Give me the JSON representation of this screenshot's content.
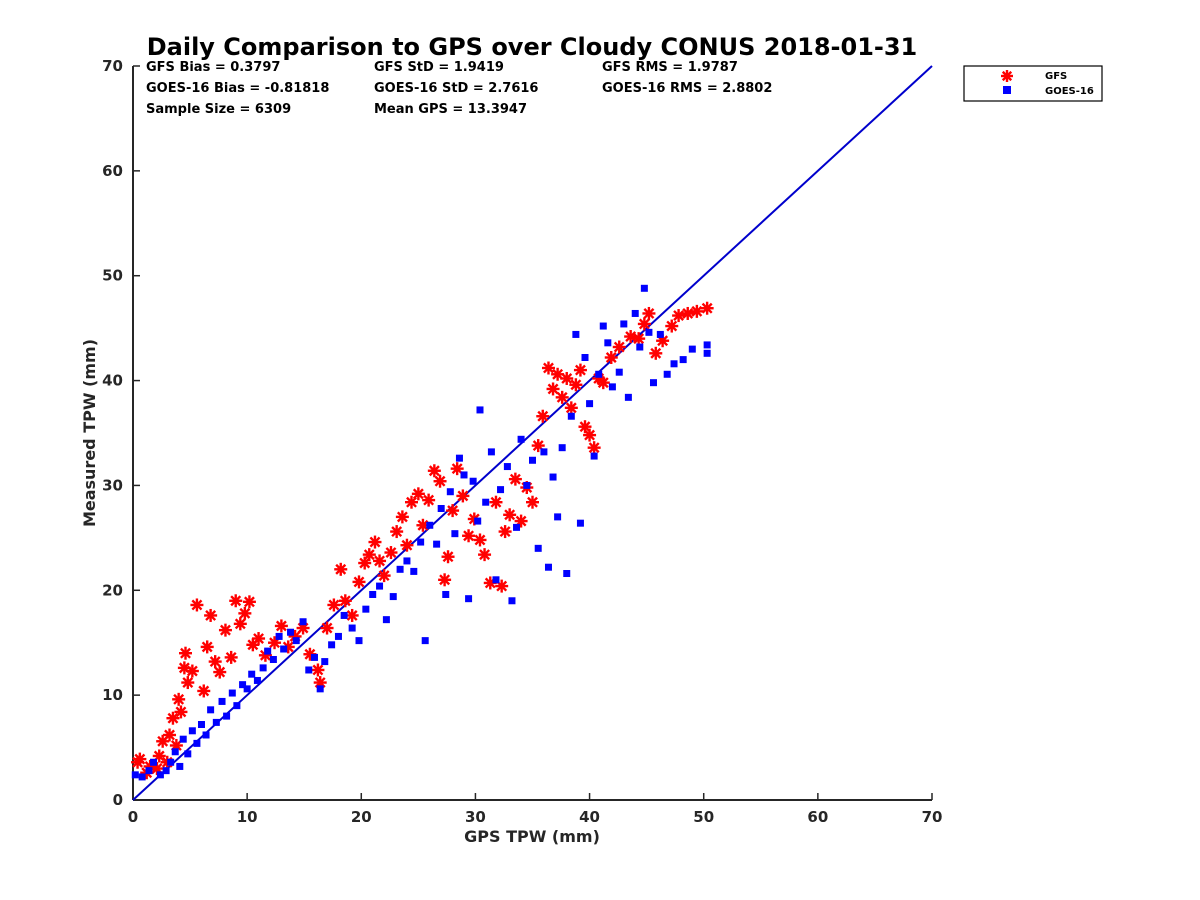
{
  "chart_data": {
    "type": "scatter",
    "title": "Daily Comparison to GPS over Cloudy CONUS 2018-01-31",
    "xlabel": "GPS TPW (mm)",
    "ylabel": "Measured TPW (mm)",
    "xlim": [
      0,
      70
    ],
    "ylim": [
      0,
      70
    ],
    "xticks": [
      "0",
      "10",
      "20",
      "30",
      "40",
      "50",
      "60",
      "70"
    ],
    "yticks": [
      "0",
      "10",
      "20",
      "30",
      "40",
      "50",
      "60",
      "70"
    ],
    "grid": false,
    "legend_position": "outside top-right",
    "stats": [
      [
        "GFS Bias = 0.3797",
        "GFS StD = 1.9419",
        "GFS RMS = 1.9787"
      ],
      [
        "GOES-16 Bias = -0.81818",
        "GOES-16 StD = 2.7616",
        "GOES-16 RMS = 2.8802"
      ],
      [
        "Sample Size = 6309",
        "Mean GPS = 13.3947",
        ""
      ]
    ],
    "reference_line": {
      "x": [
        0,
        70
      ],
      "y": [
        0,
        70
      ],
      "color": "#0000cc"
    },
    "series": [
      {
        "name": "GFS",
        "marker": "asterisk",
        "color": "#ff0000",
        "points": [
          [
            0.4,
            3.6
          ],
          [
            0.6,
            3.9
          ],
          [
            1.2,
            2.6
          ],
          [
            1.5,
            3.2
          ],
          [
            2.1,
            3.0
          ],
          [
            2.3,
            4.2
          ],
          [
            2.6,
            5.6
          ],
          [
            3.0,
            3.6
          ],
          [
            3.2,
            6.2
          ],
          [
            3.5,
            7.8
          ],
          [
            3.8,
            5.2
          ],
          [
            4.0,
            9.6
          ],
          [
            4.2,
            8.4
          ],
          [
            4.5,
            12.6
          ],
          [
            4.8,
            11.2
          ],
          [
            4.6,
            14.0
          ],
          [
            5.2,
            12.3
          ],
          [
            5.6,
            18.6
          ],
          [
            6.2,
            10.4
          ],
          [
            6.5,
            14.6
          ],
          [
            6.8,
            17.6
          ],
          [
            7.2,
            13.2
          ],
          [
            7.6,
            12.2
          ],
          [
            8.1,
            16.2
          ],
          [
            8.6,
            13.6
          ],
          [
            9.0,
            19.0
          ],
          [
            9.4,
            16.8
          ],
          [
            9.8,
            17.8
          ],
          [
            10.2,
            18.9
          ],
          [
            10.5,
            14.8
          ],
          [
            11.0,
            15.4
          ],
          [
            11.6,
            13.8
          ],
          [
            12.4,
            15.0
          ],
          [
            13.0,
            16.6
          ],
          [
            13.6,
            14.6
          ],
          [
            14.2,
            15.6
          ],
          [
            14.9,
            16.4
          ],
          [
            15.5,
            13.9
          ],
          [
            16.2,
            12.4
          ],
          [
            16.4,
            11.2
          ],
          [
            17.0,
            16.4
          ],
          [
            17.6,
            18.6
          ],
          [
            18.2,
            22.0
          ],
          [
            18.6,
            19.0
          ],
          [
            19.2,
            17.6
          ],
          [
            19.8,
            20.8
          ],
          [
            20.3,
            22.6
          ],
          [
            20.7,
            23.4
          ],
          [
            21.2,
            24.6
          ],
          [
            21.6,
            22.8
          ],
          [
            22.0,
            21.4
          ],
          [
            22.6,
            23.6
          ],
          [
            23.1,
            25.6
          ],
          [
            23.6,
            27.0
          ],
          [
            24.0,
            24.3
          ],
          [
            24.4,
            28.4
          ],
          [
            25.0,
            29.2
          ],
          [
            25.4,
            26.2
          ],
          [
            25.9,
            28.6
          ],
          [
            26.4,
            31.4
          ],
          [
            26.9,
            30.4
          ],
          [
            27.3,
            21.0
          ],
          [
            27.6,
            23.2
          ],
          [
            28.0,
            27.6
          ],
          [
            28.4,
            31.6
          ],
          [
            28.9,
            29.0
          ],
          [
            29.4,
            25.2
          ],
          [
            29.9,
            26.8
          ],
          [
            30.4,
            24.8
          ],
          [
            30.8,
            23.4
          ],
          [
            31.3,
            20.7
          ],
          [
            31.8,
            28.4
          ],
          [
            32.3,
            20.4
          ],
          [
            32.6,
            25.6
          ],
          [
            33.0,
            27.2
          ],
          [
            33.5,
            30.6
          ],
          [
            34.0,
            26.6
          ],
          [
            34.5,
            29.8
          ],
          [
            35.0,
            28.4
          ],
          [
            35.5,
            33.8
          ],
          [
            35.9,
            36.6
          ],
          [
            36.4,
            41.2
          ],
          [
            36.8,
            39.2
          ],
          [
            37.2,
            40.6
          ],
          [
            37.6,
            38.4
          ],
          [
            38.0,
            40.2
          ],
          [
            38.4,
            37.4
          ],
          [
            38.8,
            39.6
          ],
          [
            39.2,
            41.0
          ],
          [
            39.6,
            35.6
          ],
          [
            40.0,
            34.8
          ],
          [
            40.4,
            33.6
          ],
          [
            40.8,
            40.2
          ],
          [
            41.2,
            39.8
          ],
          [
            41.9,
            42.2
          ],
          [
            42.6,
            43.2
          ],
          [
            43.6,
            44.2
          ],
          [
            44.3,
            44.0
          ],
          [
            44.8,
            45.4
          ],
          [
            45.2,
            46.4
          ],
          [
            45.8,
            42.6
          ],
          [
            46.4,
            43.8
          ],
          [
            47.2,
            45.2
          ],
          [
            47.8,
            46.2
          ],
          [
            48.6,
            46.4
          ],
          [
            49.4,
            46.6
          ],
          [
            50.3,
            46.9
          ]
        ]
      },
      {
        "name": "GOES-16",
        "marker": "square",
        "color": "#0000ff",
        "points": [
          [
            0.2,
            2.4
          ],
          [
            0.8,
            2.2
          ],
          [
            1.4,
            2.8
          ],
          [
            1.8,
            3.6
          ],
          [
            2.4,
            2.4
          ],
          [
            2.9,
            2.8
          ],
          [
            3.3,
            3.6
          ],
          [
            3.7,
            4.6
          ],
          [
            4.1,
            3.2
          ],
          [
            4.4,
            5.8
          ],
          [
            4.8,
            4.4
          ],
          [
            5.2,
            6.6
          ],
          [
            5.6,
            5.4
          ],
          [
            6.0,
            7.2
          ],
          [
            6.4,
            6.2
          ],
          [
            6.8,
            8.6
          ],
          [
            7.3,
            7.4
          ],
          [
            7.8,
            9.4
          ],
          [
            8.2,
            8.0
          ],
          [
            8.7,
            10.2
          ],
          [
            9.1,
            9.0
          ],
          [
            9.6,
            11.0
          ],
          [
            10.0,
            10.6
          ],
          [
            10.4,
            12.0
          ],
          [
            10.9,
            11.4
          ],
          [
            11.4,
            12.6
          ],
          [
            11.8,
            14.2
          ],
          [
            12.3,
            13.4
          ],
          [
            12.8,
            15.6
          ],
          [
            13.2,
            14.4
          ],
          [
            13.8,
            16.0
          ],
          [
            14.3,
            15.2
          ],
          [
            14.9,
            17.0
          ],
          [
            15.4,
            12.4
          ],
          [
            15.9,
            13.6
          ],
          [
            16.4,
            10.6
          ],
          [
            16.8,
            13.2
          ],
          [
            17.4,
            14.8
          ],
          [
            18.0,
            15.6
          ],
          [
            18.5,
            17.6
          ],
          [
            19.2,
            16.4
          ],
          [
            19.8,
            15.2
          ],
          [
            20.4,
            18.2
          ],
          [
            21.0,
            19.6
          ],
          [
            21.6,
            20.4
          ],
          [
            22.2,
            17.2
          ],
          [
            22.8,
            19.4
          ],
          [
            23.4,
            22.0
          ],
          [
            24.0,
            22.8
          ],
          [
            24.6,
            21.8
          ],
          [
            25.2,
            24.6
          ],
          [
            25.6,
            15.2
          ],
          [
            26.0,
            26.2
          ],
          [
            26.6,
            24.4
          ],
          [
            27.0,
            27.8
          ],
          [
            27.4,
            19.6
          ],
          [
            27.8,
            29.4
          ],
          [
            28.2,
            25.4
          ],
          [
            28.6,
            32.6
          ],
          [
            29.0,
            31.0
          ],
          [
            29.4,
            19.2
          ],
          [
            29.8,
            30.4
          ],
          [
            30.2,
            26.6
          ],
          [
            30.4,
            37.2
          ],
          [
            30.9,
            28.4
          ],
          [
            31.4,
            33.2
          ],
          [
            31.8,
            21.0
          ],
          [
            32.2,
            29.6
          ],
          [
            32.8,
            31.8
          ],
          [
            33.2,
            19.0
          ],
          [
            33.6,
            26.0
          ],
          [
            34.0,
            34.4
          ],
          [
            34.5,
            30.0
          ],
          [
            35.0,
            32.4
          ],
          [
            35.5,
            24.0
          ],
          [
            36.0,
            33.2
          ],
          [
            36.4,
            22.2
          ],
          [
            36.8,
            30.8
          ],
          [
            37.2,
            27.0
          ],
          [
            37.6,
            33.6
          ],
          [
            38.0,
            21.6
          ],
          [
            38.4,
            36.6
          ],
          [
            38.8,
            44.4
          ],
          [
            39.2,
            26.4
          ],
          [
            39.6,
            42.2
          ],
          [
            40.0,
            37.8
          ],
          [
            40.4,
            32.8
          ],
          [
            40.8,
            40.6
          ],
          [
            41.2,
            45.2
          ],
          [
            41.6,
            43.6
          ],
          [
            42.0,
            39.4
          ],
          [
            42.6,
            40.8
          ],
          [
            43.0,
            45.4
          ],
          [
            43.4,
            38.4
          ],
          [
            44.0,
            46.4
          ],
          [
            44.4,
            43.2
          ],
          [
            44.8,
            48.8
          ],
          [
            45.2,
            44.6
          ],
          [
            45.6,
            39.8
          ],
          [
            46.2,
            44.4
          ],
          [
            46.8,
            40.6
          ],
          [
            47.4,
            41.6
          ],
          [
            48.2,
            42.0
          ],
          [
            49.0,
            43.0
          ],
          [
            50.3,
            43.4
          ],
          [
            50.3,
            42.6
          ]
        ]
      }
    ]
  }
}
